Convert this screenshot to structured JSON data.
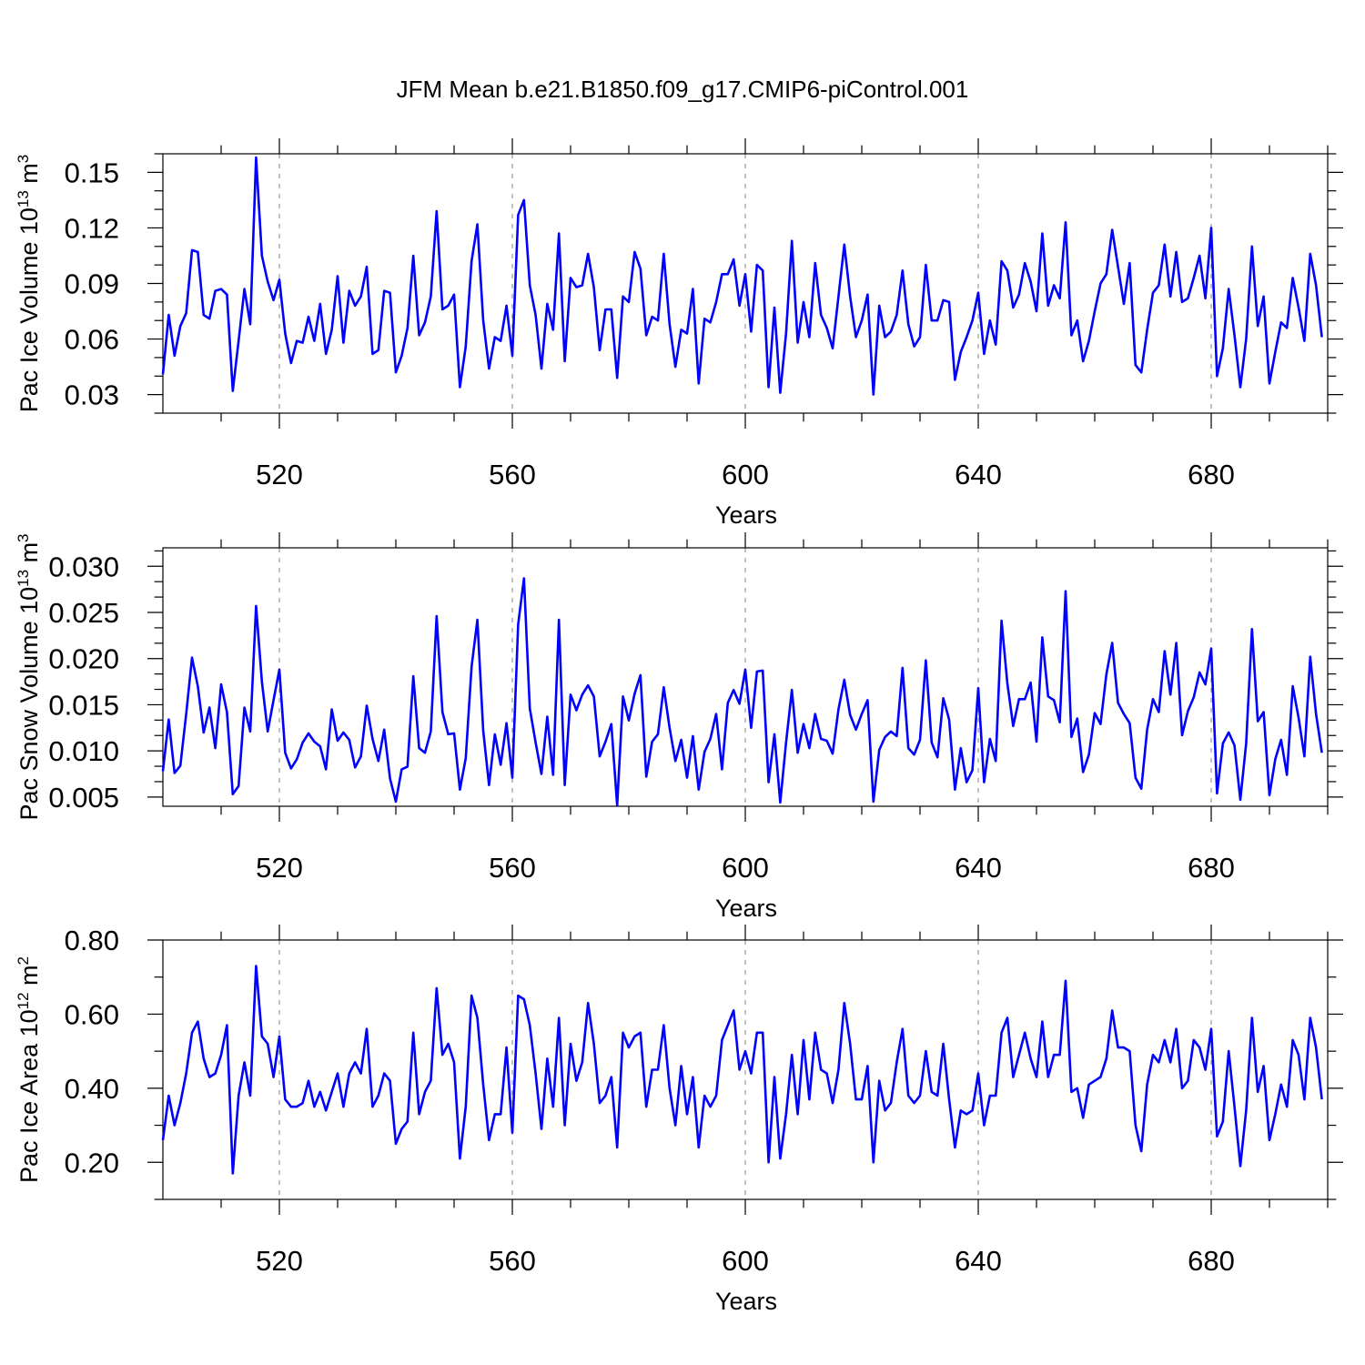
{
  "title": "JFM Mean b.e21.B1850.f09_g17.CMIP6-piControl.001",
  "line_color": "#0000ff",
  "chart_data": [
    {
      "type": "line",
      "xlabel": "Years",
      "ylabel": {
        "base": "Pac Ice Volume 10",
        "exp1": "13",
        "unit": " m",
        "exp2": "3"
      },
      "xlim": [
        500,
        700
      ],
      "ylim": [
        0.02,
        0.16
      ],
      "xticks": [
        520,
        560,
        600,
        640,
        680
      ],
      "yticks": [
        {
          "v": 0.03,
          "label": "0.03"
        },
        {
          "v": 0.06,
          "label": "0.06"
        },
        {
          "v": 0.09,
          "label": "0.09"
        },
        {
          "v": 0.12,
          "label": "0.12"
        },
        {
          "v": 0.15,
          "label": "0.15"
        }
      ],
      "x_start": 500,
      "values": [
        0.041,
        0.073,
        0.051,
        0.067,
        0.074,
        0.108,
        0.107,
        0.073,
        0.071,
        0.086,
        0.087,
        0.084,
        0.032,
        0.059,
        0.087,
        0.068,
        0.158,
        0.105,
        0.091,
        0.081,
        0.092,
        0.063,
        0.047,
        0.059,
        0.058,
        0.072,
        0.059,
        0.079,
        0.052,
        0.065,
        0.094,
        0.058,
        0.086,
        0.078,
        0.083,
        0.099,
        0.052,
        0.054,
        0.086,
        0.085,
        0.042,
        0.051,
        0.066,
        0.105,
        0.062,
        0.069,
        0.083,
        0.129,
        0.076,
        0.078,
        0.084,
        0.034,
        0.056,
        0.102,
        0.122,
        0.07,
        0.044,
        0.061,
        0.059,
        0.078,
        0.051,
        0.127,
        0.135,
        0.089,
        0.073,
        0.044,
        0.079,
        0.065,
        0.117,
        0.048,
        0.093,
        0.088,
        0.089,
        0.106,
        0.088,
        0.054,
        0.076,
        0.076,
        0.039,
        0.083,
        0.08,
        0.107,
        0.098,
        0.062,
        0.072,
        0.07,
        0.106,
        0.068,
        0.045,
        0.065,
        0.063,
        0.087,
        0.036,
        0.071,
        0.069,
        0.08,
        0.095,
        0.095,
        0.103,
        0.078,
        0.095,
        0.064,
        0.1,
        0.097,
        0.034,
        0.077,
        0.031,
        0.063,
        0.113,
        0.058,
        0.08,
        0.061,
        0.101,
        0.073,
        0.066,
        0.055,
        0.083,
        0.111,
        0.083,
        0.061,
        0.07,
        0.084,
        0.03,
        0.078,
        0.061,
        0.064,
        0.073,
        0.097,
        0.068,
        0.056,
        0.061,
        0.1,
        0.07,
        0.07,
        0.081,
        0.08,
        0.038,
        0.053,
        0.061,
        0.07,
        0.085,
        0.052,
        0.07,
        0.057,
        0.102,
        0.097,
        0.077,
        0.084,
        0.101,
        0.091,
        0.075,
        0.117,
        0.078,
        0.089,
        0.082,
        0.123,
        0.062,
        0.07,
        0.048,
        0.059,
        0.075,
        0.09,
        0.095,
        0.119,
        0.099,
        0.079,
        0.101,
        0.046,
        0.042,
        0.065,
        0.085,
        0.089,
        0.111,
        0.083,
        0.107,
        0.08,
        0.082,
        0.093,
        0.105,
        0.082,
        0.12,
        0.04,
        0.055,
        0.087,
        0.062,
        0.034,
        0.06,
        0.11,
        0.067,
        0.083,
        0.036,
        0.053,
        0.069,
        0.066,
        0.093,
        0.077,
        0.059,
        0.106,
        0.089,
        0.061
      ]
    },
    {
      "type": "line",
      "xlabel": "Years",
      "ylabel": {
        "base": "Pac Snow Volume 10",
        "exp1": "13",
        "unit": " m",
        "exp2": "3"
      },
      "xlim": [
        500,
        700
      ],
      "ylim": [
        0.004,
        0.032
      ],
      "xticks": [
        520,
        560,
        600,
        640,
        680
      ],
      "yticks": [
        {
          "v": 0.005,
          "label": "0.005"
        },
        {
          "v": 0.01,
          "label": "0.010"
        },
        {
          "v": 0.015,
          "label": "0.015"
        },
        {
          "v": 0.02,
          "label": "0.020"
        },
        {
          "v": 0.025,
          "label": "0.025"
        },
        {
          "v": 0.03,
          "label": "0.030"
        }
      ],
      "x_start": 500,
      "values": [
        0.0078,
        0.0134,
        0.0076,
        0.0084,
        0.014,
        0.0201,
        0.017,
        0.012,
        0.0147,
        0.0103,
        0.0172,
        0.0142,
        0.0053,
        0.0062,
        0.0147,
        0.0121,
        0.0257,
        0.0175,
        0.0121,
        0.0155,
        0.0188,
        0.0098,
        0.0081,
        0.0091,
        0.0109,
        0.0119,
        0.011,
        0.0105,
        0.008,
        0.0145,
        0.0111,
        0.012,
        0.0112,
        0.0082,
        0.0094,
        0.0149,
        0.0113,
        0.0089,
        0.0123,
        0.007,
        0.0045,
        0.008,
        0.0083,
        0.0181,
        0.0103,
        0.0098,
        0.0121,
        0.0246,
        0.0142,
        0.0118,
        0.0119,
        0.0058,
        0.0092,
        0.0191,
        0.0242,
        0.0122,
        0.0063,
        0.0118,
        0.0085,
        0.013,
        0.0071,
        0.0237,
        0.0287,
        0.0146,
        0.0109,
        0.0075,
        0.0137,
        0.0074,
        0.0242,
        0.0063,
        0.0161,
        0.0144,
        0.0161,
        0.0171,
        0.0159,
        0.0094,
        0.011,
        0.0129,
        0.0041,
        0.0159,
        0.0133,
        0.0162,
        0.0182,
        0.0072,
        0.011,
        0.0118,
        0.0169,
        0.0125,
        0.0089,
        0.0112,
        0.0071,
        0.0116,
        0.0058,
        0.0099,
        0.0113,
        0.014,
        0.008,
        0.0152,
        0.0166,
        0.0151,
        0.0188,
        0.0125,
        0.0186,
        0.0187,
        0.0066,
        0.0118,
        0.0044,
        0.0109,
        0.0166,
        0.0098,
        0.0129,
        0.0103,
        0.014,
        0.0113,
        0.0111,
        0.0097,
        0.0145,
        0.0177,
        0.0139,
        0.0123,
        0.014,
        0.0155,
        0.0045,
        0.0101,
        0.0115,
        0.0121,
        0.0116,
        0.019,
        0.0103,
        0.0096,
        0.0112,
        0.0198,
        0.0109,
        0.0093,
        0.0157,
        0.0134,
        0.0058,
        0.0103,
        0.0066,
        0.0079,
        0.0168,
        0.0066,
        0.0113,
        0.0089,
        0.0241,
        0.0173,
        0.0127,
        0.0156,
        0.0156,
        0.0174,
        0.011,
        0.0223,
        0.0159,
        0.0155,
        0.0131,
        0.0273,
        0.0115,
        0.0135,
        0.0077,
        0.0096,
        0.0141,
        0.0129,
        0.0183,
        0.0217,
        0.0152,
        0.014,
        0.013,
        0.0071,
        0.0059,
        0.0123,
        0.0156,
        0.0142,
        0.0208,
        0.0161,
        0.0217,
        0.0117,
        0.0143,
        0.0158,
        0.0185,
        0.0172,
        0.0211,
        0.0054,
        0.0108,
        0.012,
        0.0106,
        0.0047,
        0.0108,
        0.0232,
        0.0132,
        0.0142,
        0.0052,
        0.0091,
        0.0112,
        0.0074,
        0.017,
        0.0136,
        0.0094,
        0.0202,
        0.014,
        0.0098
      ]
    },
    {
      "type": "line",
      "xlabel": "Years",
      "ylabel": {
        "base": "Pac Ice Area 10",
        "exp1": "12",
        "unit": " m",
        "exp2": "2"
      },
      "xlim": [
        500,
        700
      ],
      "ylim": [
        0.1,
        0.8
      ],
      "xticks": [
        520,
        560,
        600,
        640,
        680
      ],
      "yticks": [
        {
          "v": 0.2,
          "label": "0.20"
        },
        {
          "v": 0.4,
          "label": "0.40"
        },
        {
          "v": 0.6,
          "label": "0.60"
        },
        {
          "v": 0.8,
          "label": "0.80"
        }
      ],
      "x_start": 500,
      "values": [
        0.26,
        0.38,
        0.3,
        0.36,
        0.44,
        0.55,
        0.58,
        0.48,
        0.43,
        0.44,
        0.49,
        0.57,
        0.17,
        0.38,
        0.47,
        0.38,
        0.73,
        0.54,
        0.52,
        0.43,
        0.54,
        0.37,
        0.35,
        0.35,
        0.36,
        0.42,
        0.35,
        0.39,
        0.34,
        0.39,
        0.44,
        0.35,
        0.44,
        0.47,
        0.44,
        0.56,
        0.35,
        0.38,
        0.44,
        0.42,
        0.25,
        0.29,
        0.31,
        0.55,
        0.33,
        0.39,
        0.42,
        0.67,
        0.49,
        0.52,
        0.47,
        0.21,
        0.35,
        0.65,
        0.59,
        0.41,
        0.26,
        0.33,
        0.33,
        0.51,
        0.28,
        0.65,
        0.64,
        0.57,
        0.44,
        0.29,
        0.48,
        0.35,
        0.59,
        0.3,
        0.52,
        0.42,
        0.47,
        0.63,
        0.52,
        0.36,
        0.38,
        0.43,
        0.24,
        0.55,
        0.51,
        0.54,
        0.55,
        0.35,
        0.45,
        0.45,
        0.57,
        0.4,
        0.3,
        0.46,
        0.33,
        0.43,
        0.24,
        0.38,
        0.35,
        0.38,
        0.53,
        0.57,
        0.61,
        0.45,
        0.5,
        0.44,
        0.55,
        0.55,
        0.2,
        0.43,
        0.21,
        0.33,
        0.49,
        0.33,
        0.53,
        0.37,
        0.55,
        0.45,
        0.44,
        0.36,
        0.45,
        0.63,
        0.52,
        0.37,
        0.37,
        0.46,
        0.2,
        0.42,
        0.34,
        0.36,
        0.47,
        0.56,
        0.38,
        0.36,
        0.38,
        0.5,
        0.39,
        0.38,
        0.52,
        0.37,
        0.24,
        0.34,
        0.33,
        0.34,
        0.44,
        0.3,
        0.38,
        0.38,
        0.55,
        0.59,
        0.43,
        0.49,
        0.55,
        0.48,
        0.43,
        0.58,
        0.43,
        0.49,
        0.49,
        0.69,
        0.39,
        0.4,
        0.32,
        0.41,
        0.42,
        0.43,
        0.48,
        0.61,
        0.51,
        0.51,
        0.5,
        0.3,
        0.23,
        0.41,
        0.49,
        0.47,
        0.53,
        0.47,
        0.56,
        0.4,
        0.42,
        0.53,
        0.51,
        0.45,
        0.56,
        0.27,
        0.31,
        0.5,
        0.35,
        0.19,
        0.34,
        0.59,
        0.39,
        0.46,
        0.26,
        0.33,
        0.41,
        0.35,
        0.53,
        0.49,
        0.37,
        0.59,
        0.51,
        0.37
      ]
    }
  ]
}
